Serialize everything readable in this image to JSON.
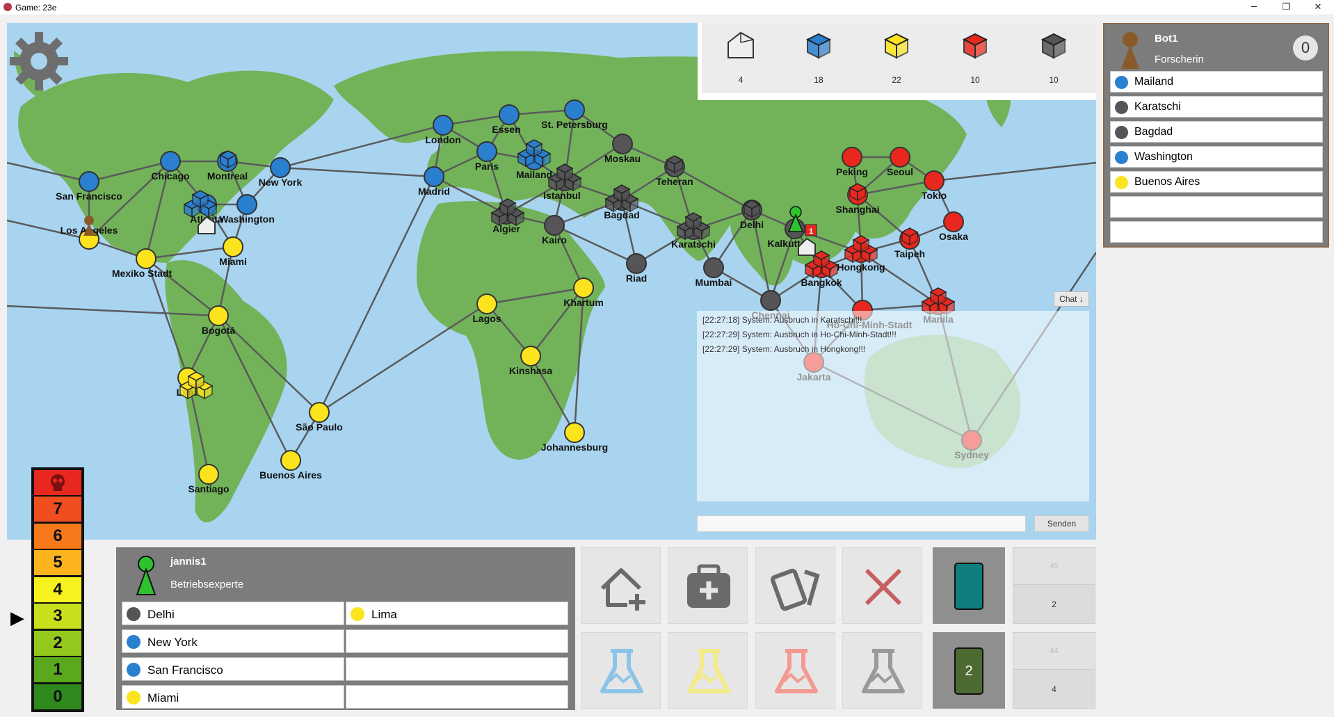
{
  "window": {
    "title": "Game: 23e",
    "minimize": "─",
    "maximize": "❐",
    "close": "✕"
  },
  "colors": {
    "blue": "#2a7fcf",
    "black": "#555558",
    "yellow": "#fbe41e",
    "red": "#e8281e",
    "ocean": "#a8d4f0",
    "land": "#72b35a"
  },
  "supply": [
    {
      "icon": "research-station-icon",
      "count": "4"
    },
    {
      "icon": "blue-cube-icon",
      "count": "18"
    },
    {
      "icon": "yellow-cube-icon",
      "count": "22"
    },
    {
      "icon": "red-cube-icon",
      "count": "10"
    },
    {
      "icon": "black-cube-icon",
      "count": "10"
    }
  ],
  "bot": {
    "name": "Bot1",
    "role": "Forscherin",
    "score": "0",
    "cards": [
      {
        "city": "Mailand",
        "color": "blue"
      },
      {
        "city": "Karatschi",
        "color": "black"
      },
      {
        "city": "Bagdad",
        "color": "black"
      },
      {
        "city": "Washington",
        "color": "blue"
      },
      {
        "city": "Buenos Aires",
        "color": "yellow"
      }
    ]
  },
  "chat": {
    "toggle_label": "Chat ↓",
    "messages": [
      "[22:27:18] System: Ausbruch in Karatschi!!!",
      "[22:27:29] System: Ausbruch in Ho-Chi-Minh-Stadt!!!",
      "[22:27:29] System: Ausbruch in Hongkong!!!"
    ],
    "input_value": "",
    "send_label": "Senden"
  },
  "outbreak_track": {
    "levels": [
      "7",
      "6",
      "5",
      "4",
      "3",
      "2",
      "1",
      "0"
    ],
    "current": "3",
    "marker": "▶",
    "top_icon": "skull-icon"
  },
  "player": {
    "name": "jannis1",
    "role": "Betriebsexperte",
    "cards_left": [
      {
        "city": "Delhi",
        "color": "black"
      },
      {
        "city": "New York",
        "color": "blue"
      },
      {
        "city": "San Francisco",
        "color": "blue"
      },
      {
        "city": "Miami",
        "color": "yellow"
      }
    ],
    "cards_right": [
      {
        "city": "Lima",
        "color": "yellow"
      },
      {
        "city": "",
        "color": ""
      },
      {
        "city": "",
        "color": ""
      },
      {
        "city": "",
        "color": ""
      }
    ]
  },
  "actions": {
    "build_station": "build-station-icon",
    "treat_disease": "medkit-icon",
    "share_cards": "cards-icon",
    "cancel": "cancel-icon",
    "cure_blue": "flask-blue-icon",
    "cure_yellow": "flask-yellow-icon",
    "cure_red": "flask-red-icon",
    "cure_black": "flask-black-icon"
  },
  "player_deck": {
    "count": "2",
    "discard_count": "45",
    "top_label": "45",
    "bottom_label": "2"
  },
  "infection_deck": {
    "rate": "2",
    "top_label": "44",
    "bottom_label": "4"
  },
  "map": {
    "cities": [
      {
        "name": "San Francisco",
        "color": "blue"
      },
      {
        "name": "Chicago",
        "color": "blue"
      },
      {
        "name": "Montreal",
        "color": "blue"
      },
      {
        "name": "New York",
        "color": "blue"
      },
      {
        "name": "Atlanta",
        "color": "blue"
      },
      {
        "name": "Washington",
        "color": "blue"
      },
      {
        "name": "London",
        "color": "blue"
      },
      {
        "name": "Essen",
        "color": "blue"
      },
      {
        "name": "St. Petersburg",
        "color": "blue"
      },
      {
        "name": "Paris",
        "color": "blue"
      },
      {
        "name": "Mailand",
        "color": "blue"
      },
      {
        "name": "Madrid",
        "color": "blue"
      },
      {
        "name": "Los Angeles",
        "color": "yellow"
      },
      {
        "name": "Mexiko Stadt",
        "color": "yellow"
      },
      {
        "name": "Miami",
        "color": "yellow"
      },
      {
        "name": "Bogotá",
        "color": "yellow"
      },
      {
        "name": "Lima",
        "color": "yellow"
      },
      {
        "name": "Santiago",
        "color": "yellow"
      },
      {
        "name": "São Paulo",
        "color": "yellow"
      },
      {
        "name": "Buenos Aires",
        "color": "yellow"
      },
      {
        "name": "Lagos",
        "color": "yellow"
      },
      {
        "name": "Khartum",
        "color": "yellow"
      },
      {
        "name": "Kinshasa",
        "color": "yellow"
      },
      {
        "name": "Johannesburg",
        "color": "yellow"
      },
      {
        "name": "Moskau",
        "color": "black"
      },
      {
        "name": "Istanbul",
        "color": "black"
      },
      {
        "name": "Algier",
        "color": "black"
      },
      {
        "name": "Kairo",
        "color": "black"
      },
      {
        "name": "Bagdad",
        "color": "black"
      },
      {
        "name": "Teheran",
        "color": "black"
      },
      {
        "name": "Riad",
        "color": "black"
      },
      {
        "name": "Karatschi",
        "color": "black"
      },
      {
        "name": "Delhi",
        "color": "black"
      },
      {
        "name": "Mumbai",
        "color": "black"
      },
      {
        "name": "Kalkutta",
        "color": "black"
      },
      {
        "name": "Chennai",
        "color": "black"
      },
      {
        "name": "Peking",
        "color": "red"
      },
      {
        "name": "Seoul",
        "color": "red"
      },
      {
        "name": "Tokio",
        "color": "red"
      },
      {
        "name": "Shanghai",
        "color": "red"
      },
      {
        "name": "Osaka",
        "color": "red"
      },
      {
        "name": "Taipeh",
        "color": "red"
      },
      {
        "name": "Hongkong",
        "color": "red"
      },
      {
        "name": "Bangkok",
        "color": "red"
      },
      {
        "name": "Manila",
        "color": "red"
      },
      {
        "name": "Ho-Chi-Minh-Stadt",
        "color": "red"
      },
      {
        "name": "Jakarta",
        "color": "red"
      },
      {
        "name": "Sydney",
        "color": "red"
      }
    ],
    "pawn_badge": "1"
  }
}
